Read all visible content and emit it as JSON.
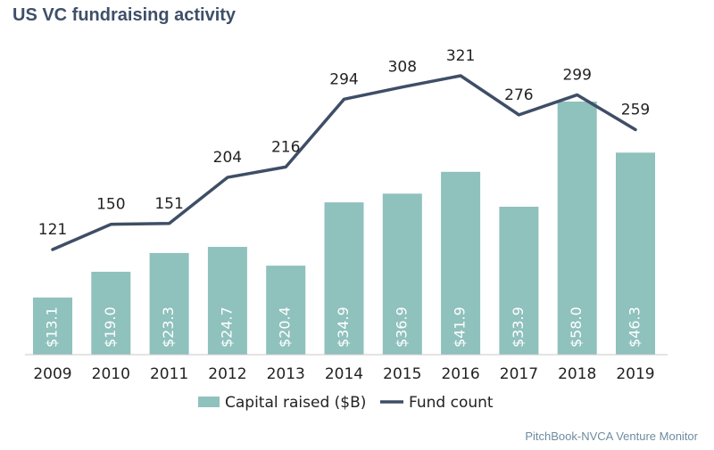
{
  "chart_data": {
    "type": "bar",
    "title": "US VC fundraising activity",
    "categories": [
      "2009",
      "2010",
      "2011",
      "2012",
      "2013",
      "2014",
      "2015",
      "2016",
      "2017",
      "2018",
      "2019"
    ],
    "series": [
      {
        "name": "Capital raised ($B)",
        "type": "bar",
        "values": [
          13.1,
          19.0,
          23.3,
          24.7,
          20.4,
          34.9,
          36.9,
          41.9,
          33.9,
          58.0,
          46.3
        ],
        "labels": [
          "$13.1",
          "$19.0",
          "$23.3",
          "$24.7",
          "$20.4",
          "$34.9",
          "$36.9",
          "$41.9",
          "$33.9",
          "$58.0",
          "$46.3"
        ]
      },
      {
        "name": "Fund count",
        "type": "line",
        "values": [
          121,
          150,
          151,
          204,
          216,
          294,
          308,
          321,
          276,
          299,
          259
        ]
      }
    ],
    "ylim_bar": [
      0,
      65
    ],
    "ylim_line": [
      0,
      350
    ],
    "grid": false,
    "legend": "bottom-center"
  },
  "colors": {
    "bar": "#8fc1bd",
    "line": "#3f4e66",
    "title": "#3e4f68",
    "source": "#6e8c9e",
    "axis": "#c8c8c8"
  },
  "source": "PitchBook-NVCA Venture Monitor"
}
